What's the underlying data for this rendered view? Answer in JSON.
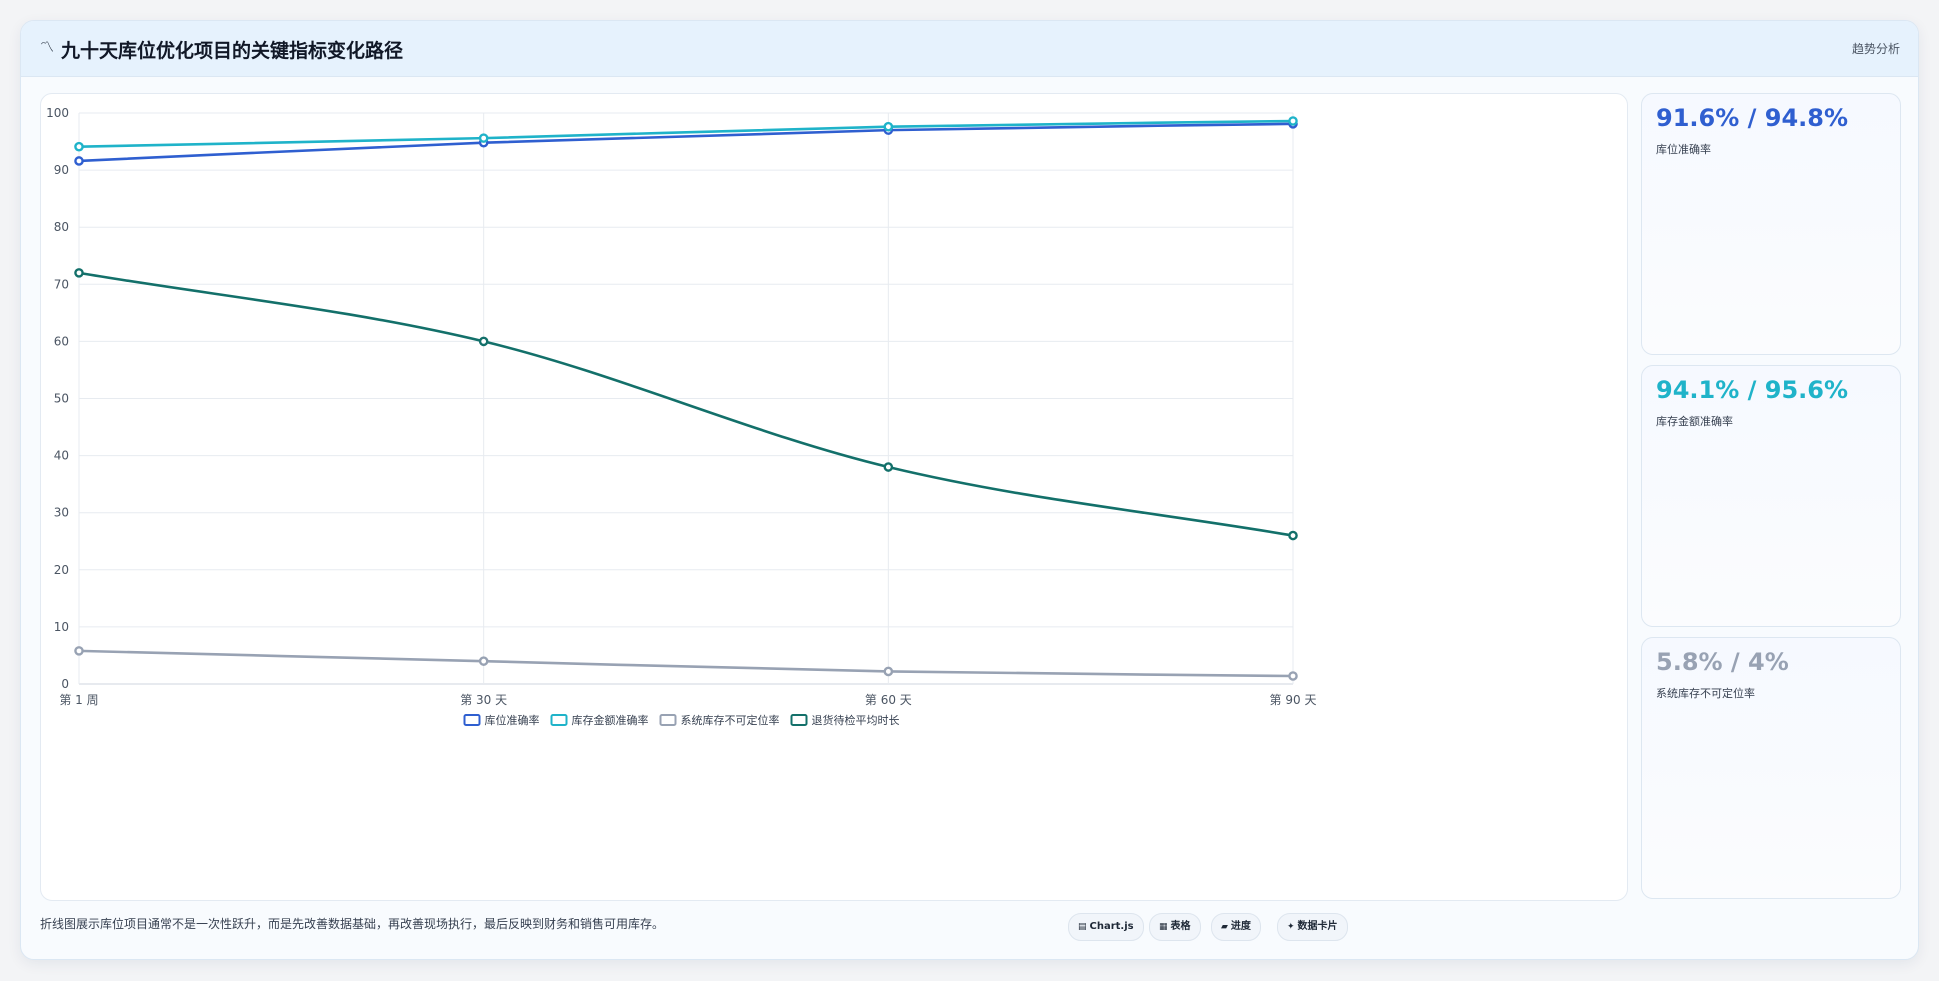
{
  "header": {
    "icon": "trend-line-icon",
    "title": "九十天库位优化项目的关键指标变化路径",
    "tag": "趋势分析"
  },
  "chart_data": {
    "type": "line",
    "categories": [
      "第 1 周",
      "第 30 天",
      "第 60 天",
      "第 90 天"
    ],
    "ylim": [
      0,
      100
    ],
    "yticks": [
      0,
      10,
      20,
      30,
      40,
      50,
      60,
      70,
      80,
      90,
      100
    ],
    "grid": true,
    "legend": "bottom",
    "series": [
      {
        "name": "库位准确率",
        "values": [
          91.6,
          94.8,
          97.0,
          98.1
        ],
        "color": "#2f5fd0"
      },
      {
        "name": "库存金额准确率",
        "values": [
          94.1,
          95.6,
          97.6,
          98.6
        ],
        "color": "#1fb3c9"
      },
      {
        "name": "系统库存不可定位率",
        "values": [
          5.8,
          4.0,
          2.2,
          1.4
        ],
        "color": "#98a2b3"
      },
      {
        "name": "退货待检平均时长",
        "values": [
          72,
          60,
          38,
          26
        ],
        "color": "#13706a"
      }
    ]
  },
  "stats": [
    {
      "value": "91.6% / 94.8%",
      "label": "库位准确率",
      "color": "#2f5fd0"
    },
    {
      "value": "94.1% / 95.6%",
      "label": "库存金额准确率",
      "color": "#1fb3c9"
    },
    {
      "value": "5.8% / 4%",
      "label": "系统库存不可定位率",
      "color": "#98a2b3"
    }
  ],
  "footer": {
    "note": "折线图展示库位项目通常不是一次性跃升，而是先改善数据基础，再改善现场执行，最后反映到财务和销售可用库存。",
    "buttons": [
      {
        "icon": "chart-icon",
        "glyph": "▤",
        "label": "Chart.js"
      },
      {
        "icon": "table-icon",
        "glyph": "▦",
        "label": "表格"
      },
      {
        "icon": "progress-icon",
        "glyph": "▰",
        "label": "进度"
      },
      {
        "icon": "data-card-icon",
        "glyph": "✦",
        "label": "数据卡片"
      }
    ]
  }
}
